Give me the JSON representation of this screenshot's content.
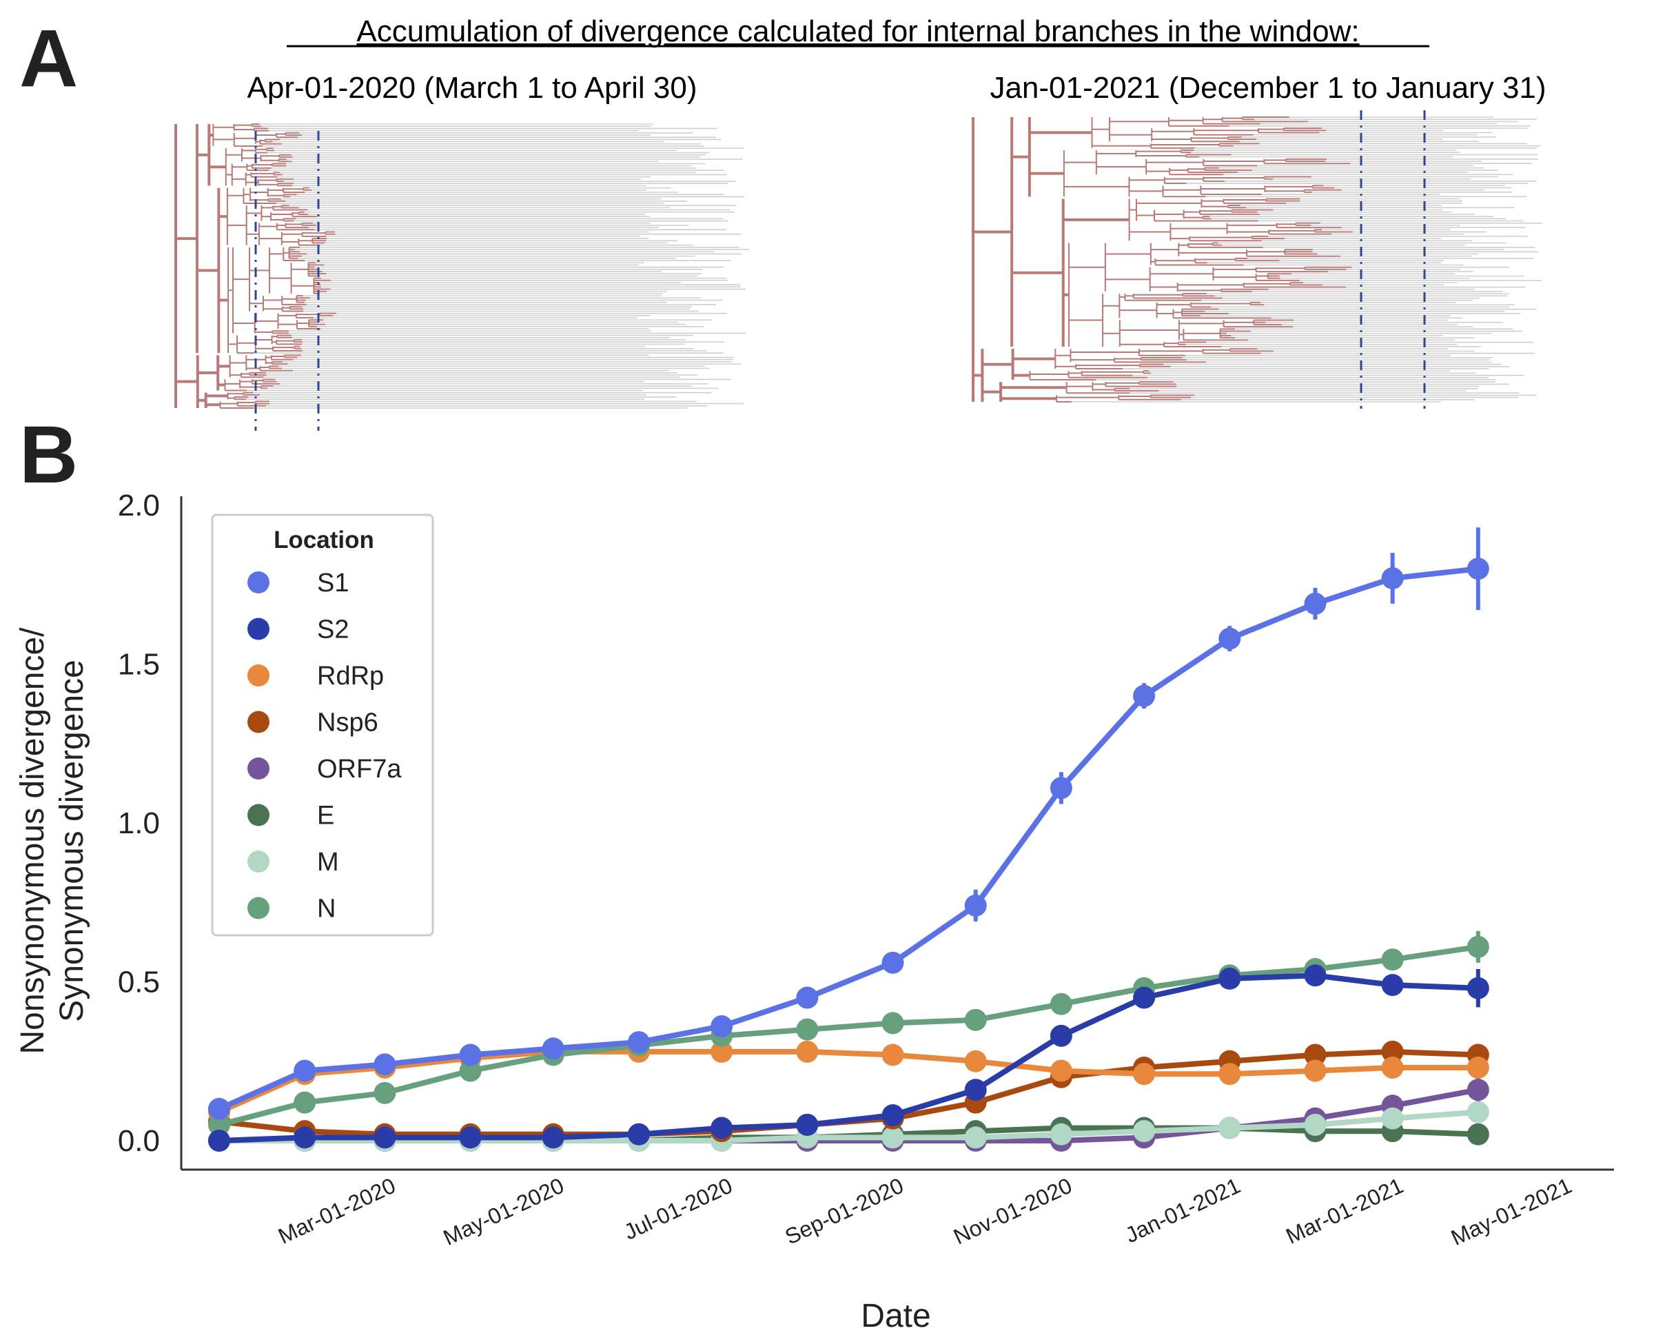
{
  "figure": {
    "panel_a_letter": "A",
    "panel_b_letter": "B",
    "panel_a_title": "Accumulation of divergence calculated for internal branches in the window:",
    "tree_left_label": "Apr-01-2020 (March 1 to April 30)",
    "tree_right_label": "Jan-01-2021 (December 1 to January 31)"
  },
  "chart_data": {
    "type": "line",
    "title": "",
    "xlabel": "Date",
    "ylabel_line1": "Nonsynonymous divergence/",
    "ylabel_line2": "Synonymous divergence",
    "ylim": [
      -0.1,
      2.0
    ],
    "xlim": [
      "2020-01-01",
      "2021-05-01"
    ],
    "grid": false,
    "legend_title": "Location",
    "legend_position": "top-left",
    "x": [
      "2020-01-01",
      "2020-02-01",
      "2020-03-01",
      "2020-04-01",
      "2020-05-01",
      "2020-06-01",
      "2020-07-01",
      "2020-08-01",
      "2020-09-01",
      "2020-10-01",
      "2020-11-01",
      "2020-12-01",
      "2021-01-01",
      "2021-02-01",
      "2021-03-01",
      "2021-04-01"
    ],
    "x_ticks": [
      "Mar-01-2020",
      "May-01-2020",
      "Jul-01-2020",
      "Sep-01-2020",
      "Nov-01-2020",
      "Jan-01-2021",
      "Mar-01-2021",
      "May-01-2021"
    ],
    "x_tick_dates": [
      "2020-03-01",
      "2020-05-01",
      "2020-07-01",
      "2020-09-01",
      "2020-11-01",
      "2021-01-01",
      "2021-03-01",
      "2021-05-01"
    ],
    "y_ticks": [
      "0.0",
      "0.5",
      "1.0",
      "1.5",
      "2.0"
    ],
    "y_tick_values": [
      0.0,
      0.5,
      1.0,
      1.5,
      2.0
    ],
    "series": [
      {
        "name": "S1",
        "color": "#5a72e6",
        "values": [
          0.1,
          0.22,
          0.24,
          0.27,
          0.29,
          0.31,
          0.36,
          0.45,
          0.56,
          0.74,
          1.11,
          1.4,
          1.58,
          1.69,
          1.77,
          1.8
        ],
        "err": [
          0.01,
          0.01,
          0.01,
          0.01,
          0.01,
          0.01,
          0.01,
          0.02,
          0.02,
          0.05,
          0.05,
          0.04,
          0.04,
          0.05,
          0.08,
          0.13
        ]
      },
      {
        "name": "S2",
        "color": "#2a3ca8",
        "values": [
          0.0,
          0.01,
          0.01,
          0.01,
          0.01,
          0.02,
          0.04,
          0.05,
          0.08,
          0.16,
          0.33,
          0.45,
          0.51,
          0.52,
          0.49,
          0.48
        ],
        "err": [
          0,
          0,
          0,
          0,
          0,
          0,
          0,
          0,
          0.01,
          0.01,
          0.02,
          0.02,
          0.02,
          0.03,
          0.03,
          0.06
        ]
      },
      {
        "name": "RdRp",
        "color": "#e8883c",
        "values": [
          0.09,
          0.21,
          0.23,
          0.26,
          0.28,
          0.28,
          0.28,
          0.28,
          0.27,
          0.25,
          0.22,
          0.21,
          0.21,
          0.22,
          0.23,
          0.23
        ],
        "err": [
          0.01,
          0.01,
          0.01,
          0.01,
          0.01,
          0.01,
          0.01,
          0.01,
          0.01,
          0.01,
          0.01,
          0.01,
          0.01,
          0.01,
          0.01,
          0.01
        ]
      },
      {
        "name": "Nsp6",
        "color": "#a84a10",
        "values": [
          0.06,
          0.03,
          0.02,
          0.02,
          0.02,
          0.02,
          0.03,
          0.05,
          0.07,
          0.12,
          0.2,
          0.23,
          0.25,
          0.27,
          0.28,
          0.27
        ],
        "err": [
          0,
          0,
          0,
          0,
          0,
          0,
          0,
          0,
          0.01,
          0.01,
          0.01,
          0.01,
          0.01,
          0.01,
          0.01,
          0.02
        ]
      },
      {
        "name": "ORF7a",
        "color": "#75559a",
        "values": [
          0.0,
          0.0,
          0.0,
          0.0,
          0.0,
          0.0,
          0.0,
          0.0,
          0.0,
          0.0,
          0.0,
          0.01,
          0.04,
          0.07,
          0.11,
          0.16
        ],
        "err": [
          0,
          0,
          0,
          0,
          0,
          0,
          0,
          0,
          0,
          0,
          0,
          0,
          0.01,
          0.01,
          0.02,
          0.04
        ]
      },
      {
        "name": "E",
        "color": "#4a7352",
        "values": [
          0.0,
          0.0,
          0.0,
          0.0,
          0.0,
          0.0,
          0.01,
          0.01,
          0.02,
          0.03,
          0.04,
          0.04,
          0.04,
          0.03,
          0.03,
          0.02
        ],
        "err": [
          0,
          0,
          0,
          0,
          0,
          0,
          0,
          0,
          0,
          0,
          0,
          0,
          0,
          0,
          0,
          0
        ]
      },
      {
        "name": "M",
        "color": "#b0d8c4",
        "values": [
          0.0,
          0.0,
          0.0,
          0.0,
          0.0,
          0.0,
          0.0,
          0.01,
          0.01,
          0.01,
          0.02,
          0.03,
          0.04,
          0.05,
          0.07,
          0.09
        ],
        "err": [
          0,
          0,
          0,
          0,
          0,
          0,
          0,
          0,
          0,
          0,
          0,
          0,
          0,
          0,
          0.01,
          0.01
        ]
      },
      {
        "name": "N",
        "color": "#66a07c",
        "values": [
          0.05,
          0.12,
          0.15,
          0.22,
          0.27,
          0.3,
          0.33,
          0.35,
          0.37,
          0.38,
          0.43,
          0.48,
          0.52,
          0.54,
          0.57,
          0.61
        ],
        "err": [
          0.01,
          0.01,
          0.01,
          0.01,
          0.01,
          0.01,
          0.01,
          0.01,
          0.01,
          0.01,
          0.01,
          0.01,
          0.01,
          0.02,
          0.03,
          0.05
        ]
      }
    ]
  },
  "colors": {
    "tree_internal": "#b87a76",
    "tree_tip": "#cfcfcf",
    "window_line": "#2f4596"
  }
}
